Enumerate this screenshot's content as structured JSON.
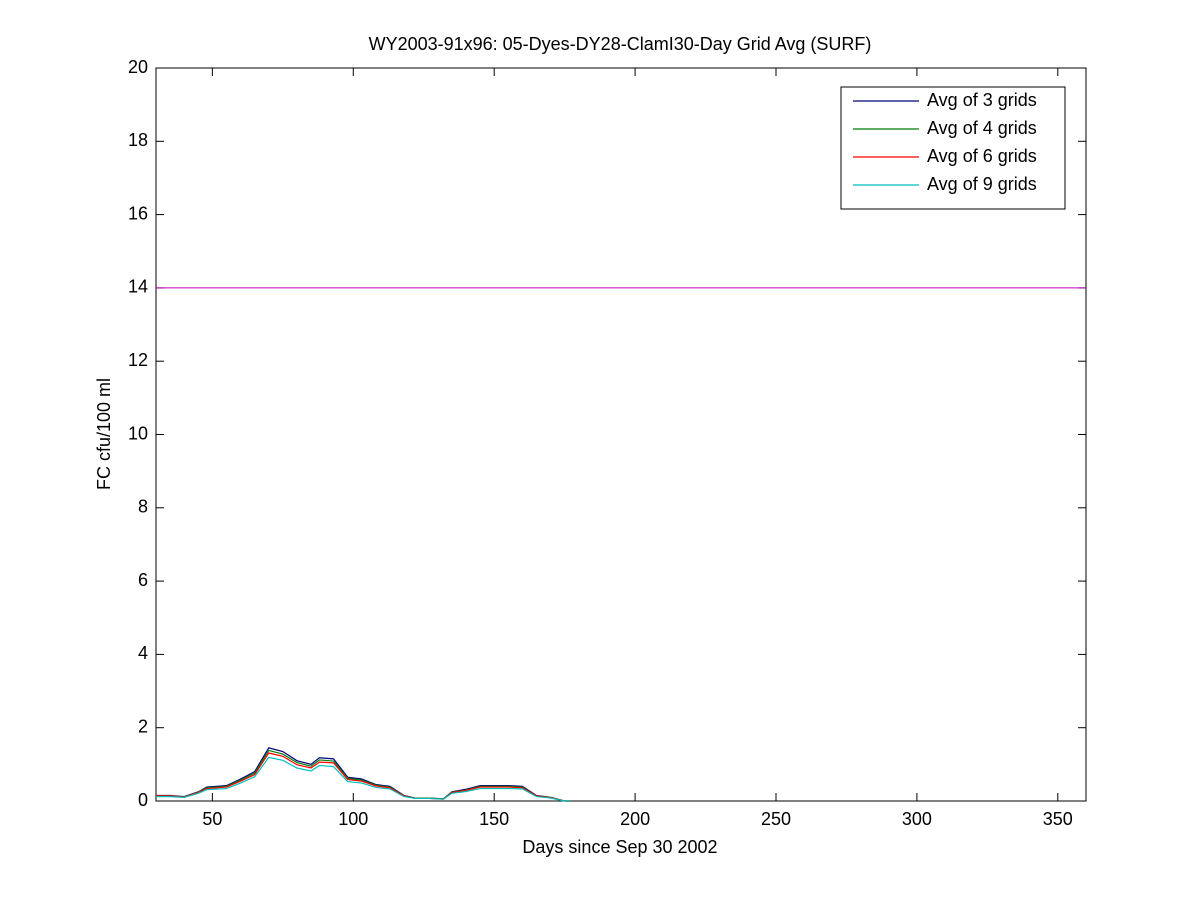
{
  "chart_data": {
    "type": "line",
    "title": "WY2003-91x96: 05-Dyes-DY28-ClamI30-Day Grid Avg (SURF)",
    "x_label": "Days since Sep 30 2002",
    "y_label": "FC cfu/100 ml",
    "x": [
      30,
      35,
      40,
      45,
      48,
      55,
      60,
      65,
      70,
      75,
      80,
      85,
      88,
      93,
      98,
      103,
      108,
      113,
      118,
      122,
      127,
      132,
      135,
      140,
      145,
      150,
      155,
      160,
      165,
      170,
      175,
      177
    ],
    "series": [
      {
        "name": "Avg of 3 grids",
        "color": "#00007f",
        "values": [
          0.15,
          0.15,
          0.12,
          0.25,
          0.38,
          0.42,
          0.6,
          0.8,
          1.45,
          1.35,
          1.1,
          1.0,
          1.18,
          1.15,
          0.65,
          0.6,
          0.45,
          0.4,
          0.15,
          0.08,
          0.08,
          0.06,
          0.25,
          0.32,
          0.42,
          0.42,
          0.42,
          0.4,
          0.15,
          0.1,
          0,
          0
        ]
      },
      {
        "name": "Avg of 4 grids",
        "color": "#007f00",
        "values": [
          0.14,
          0.14,
          0.11,
          0.24,
          0.36,
          0.4,
          0.57,
          0.76,
          1.38,
          1.28,
          1.05,
          0.95,
          1.12,
          1.09,
          0.62,
          0.57,
          0.43,
          0.38,
          0.14,
          0.08,
          0.08,
          0.06,
          0.24,
          0.3,
          0.4,
          0.4,
          0.4,
          0.38,
          0.14,
          0.1,
          0,
          0
        ]
      },
      {
        "name": "Avg of 6 grids",
        "color": "#ff0000",
        "values": [
          0.14,
          0.14,
          0.11,
          0.23,
          0.34,
          0.38,
          0.54,
          0.72,
          1.31,
          1.22,
          0.99,
          0.9,
          1.06,
          1.04,
          0.59,
          0.54,
          0.41,
          0.36,
          0.14,
          0.07,
          0.07,
          0.05,
          0.23,
          0.29,
          0.38,
          0.38,
          0.38,
          0.36,
          0.14,
          0.09,
          0,
          0
        ]
      },
      {
        "name": "Avg of 9 grids",
        "color": "#00bfbf",
        "values": [
          0.12,
          0.12,
          0.1,
          0.21,
          0.31,
          0.34,
          0.49,
          0.66,
          1.19,
          1.11,
          0.9,
          0.82,
          0.97,
          0.94,
          0.53,
          0.49,
          0.37,
          0.33,
          0.12,
          0.07,
          0.07,
          0.05,
          0.21,
          0.26,
          0.34,
          0.34,
          0.34,
          0.33,
          0.12,
          0.08,
          0,
          0
        ]
      }
    ],
    "reference_line": {
      "value": 14,
      "color": "#bf00bf"
    },
    "xlim": [
      30,
      360
    ],
    "xticks": [
      50,
      100,
      150,
      200,
      250,
      300,
      350
    ],
    "ylim": [
      0,
      20
    ],
    "yticks": [
      0,
      2,
      4,
      6,
      8,
      10,
      12,
      14,
      16,
      18,
      20
    ],
    "grid": false,
    "legend_position": "upper-right"
  }
}
